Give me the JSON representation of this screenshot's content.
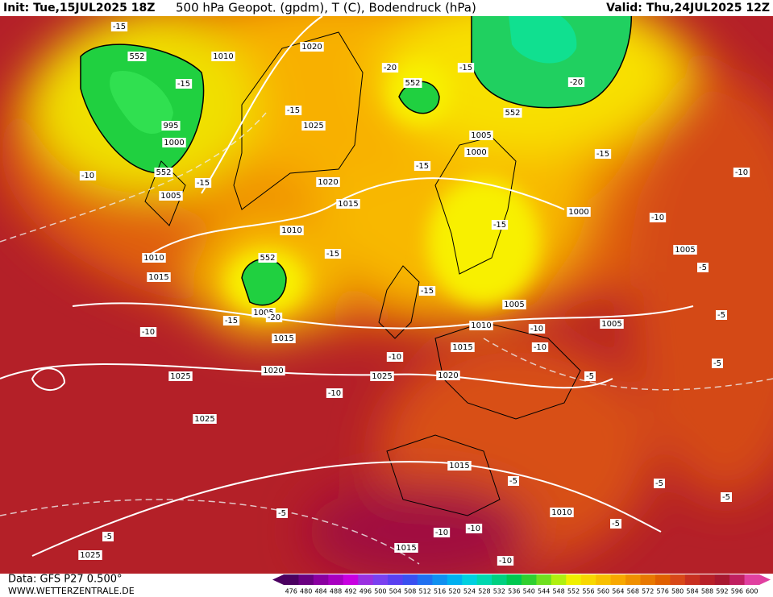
{
  "header": {
    "init": "Init: Tue,15JUL2025 18Z",
    "title": "500 hPa Geopot. (gpdm), T (C), Bodendruck (hPa)",
    "valid": "Valid: Thu,24JUL2025 12Z"
  },
  "footer": {
    "data": "Data: GFS P27 0.500°",
    "site": "WWW.WETTERZENTRALE.DE"
  },
  "colorbar": {
    "labels": [
      476,
      480,
      484,
      488,
      492,
      496,
      500,
      504,
      508,
      512,
      516,
      520,
      524,
      528,
      532,
      536,
      540,
      544,
      548,
      552,
      556,
      560,
      564,
      568,
      572,
      576,
      580,
      584,
      588,
      592,
      596,
      600
    ],
    "colors": [
      "#4b0060",
      "#6a0080",
      "#8a00a0",
      "#a800c0",
      "#c800e0",
      "#9a30e0",
      "#7a40f0",
      "#5a40f0",
      "#3a50f0",
      "#2070f0",
      "#1090f0",
      "#00b0f0",
      "#00d0e0",
      "#00d8b0",
      "#00d080",
      "#00c850",
      "#30d030",
      "#70e020",
      "#b0f010",
      "#f0f000",
      "#f8d800",
      "#f8c000",
      "#f8a800",
      "#f09000",
      "#e87800",
      "#e06000",
      "#d84818",
      "#c83020",
      "#b82028",
      "#a81830",
      "#c02060",
      "#e040a0"
    ]
  },
  "map_labels": [
    "-15",
    "552",
    "1010",
    "-15",
    "995",
    "1000",
    "552",
    "1005",
    "-15",
    "1020",
    "-20",
    "552",
    "-15",
    "-20",
    "552",
    "-15",
    "1025",
    "1005",
    "1000",
    "-15",
    "-15",
    "-10",
    "1020",
    "1015",
    "-10",
    "1000",
    "-10",
    "-15",
    "1010",
    "1010",
    "-15",
    "552",
    "1005",
    "-5",
    "1015",
    "-15",
    "1005",
    "1005",
    "-15",
    "-20",
    "-5",
    "1010",
    "1005",
    "-10",
    "1015",
    "-10",
    "1015",
    "-10",
    "-10",
    "-5",
    "1025",
    "1020",
    "1025",
    "1020",
    "-5",
    "-10",
    "1025",
    "1015",
    "-5",
    "-5",
    "-5",
    "-5",
    "1010",
    "-5",
    "-10",
    "-10",
    "-5",
    "1025",
    "1015",
    "-10"
  ]
}
